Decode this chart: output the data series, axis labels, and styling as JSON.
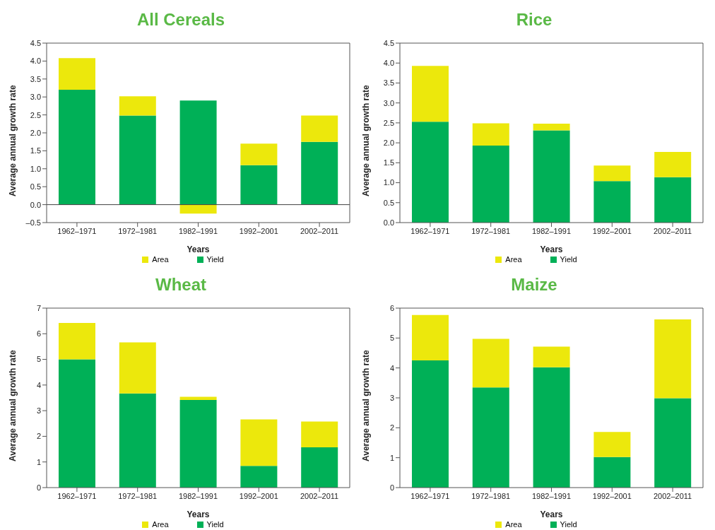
{
  "chart_data": [
    {
      "type": "bar",
      "title": "All Cereals",
      "xlabel": "Years",
      "ylabel": "Average annual growth rate",
      "categories": [
        "1962–1971",
        "1972–1981",
        "1982–1991",
        "1992–2001",
        "2002–2011"
      ],
      "stacked": true,
      "series": [
        {
          "name": "Yield",
          "color": "#00b057",
          "values": [
            3.2,
            2.48,
            2.9,
            1.1,
            1.75
          ]
        },
        {
          "name": "Area",
          "color": "#ece80c",
          "values": [
            0.88,
            0.54,
            -0.25,
            0.6,
            0.73
          ]
        }
      ],
      "ylim": [
        -0.5,
        4.5
      ],
      "yticks": [
        {
          "value": -0.5,
          "label": "–0.5"
        },
        {
          "value": 0,
          "label": "0.0"
        },
        {
          "value": 0.5,
          "label": "0.5"
        },
        {
          "value": 1,
          "label": "1.0"
        },
        {
          "value": 1.5,
          "label": "1.5"
        },
        {
          "value": 2,
          "label": "2.0"
        },
        {
          "value": 2.5,
          "label": "2.5"
        },
        {
          "value": 3,
          "label": "3.0"
        },
        {
          "value": 3.5,
          "label": "3.5"
        },
        {
          "value": 4,
          "label": "4.0"
        },
        {
          "value": 4.5,
          "label": "4.5"
        }
      ],
      "ref_lines": [
        {
          "axis": "y",
          "value": 0,
          "color": "#404040"
        }
      ],
      "grid": false,
      "legend": "bottom"
    },
    {
      "type": "bar",
      "title": "Rice",
      "xlabel": "Years",
      "ylabel": "Average annual growth rate",
      "categories": [
        "1962–1971",
        "1972–1981",
        "1982–1991",
        "1992–2001",
        "2002–2011"
      ],
      "stacked": true,
      "series": [
        {
          "name": "Yield",
          "color": "#00b057",
          "values": [
            2.53,
            1.93,
            2.31,
            1.04,
            1.14
          ]
        },
        {
          "name": "Area",
          "color": "#ece80c",
          "values": [
            1.4,
            0.56,
            0.17,
            0.39,
            0.63
          ]
        }
      ],
      "ylim": [
        0,
        4.5
      ],
      "yticks": [
        {
          "value": 0,
          "label": "0.0"
        },
        {
          "value": 0.5,
          "label": "0.5"
        },
        {
          "value": 1,
          "label": "1.0"
        },
        {
          "value": 1.5,
          "label": "1.5"
        },
        {
          "value": 2,
          "label": "2.0"
        },
        {
          "value": 2.5,
          "label": "2.5"
        },
        {
          "value": 3,
          "label": "3.0"
        },
        {
          "value": 3.5,
          "label": "3.5"
        },
        {
          "value": 4,
          "label": "4.0"
        },
        {
          "value": 4.5,
          "label": "4.5"
        }
      ],
      "grid": false,
      "legend": "bottom"
    },
    {
      "type": "bar",
      "title": "Wheat",
      "xlabel": "Years",
      "ylabel": "Average annual growth rate",
      "categories": [
        "1962–1971",
        "1972–1981",
        "1982–1991",
        "1992–2001",
        "2002–2011"
      ],
      "stacked": true,
      "series": [
        {
          "name": "Yield",
          "color": "#00b057",
          "values": [
            5.0,
            3.67,
            3.42,
            0.85,
            1.57
          ]
        },
        {
          "name": "Area",
          "color": "#ece80c",
          "values": [
            1.42,
            1.99,
            0.12,
            1.81,
            1.01
          ]
        }
      ],
      "ylim": [
        0,
        7
      ],
      "yticks": [
        0,
        1,
        2,
        3,
        4,
        5,
        6,
        7
      ],
      "grid": false,
      "legend": "bottom"
    },
    {
      "type": "bar",
      "title": "Maize",
      "xlabel": "Years",
      "ylabel": "Average annual growth rate",
      "categories": [
        "1962–1971",
        "1972–1981",
        "1982–1991",
        "1992–2001",
        "2002–2011"
      ],
      "stacked": true,
      "series": [
        {
          "name": "Yield",
          "color": "#00b057",
          "values": [
            4.25,
            3.35,
            4.02,
            1.02,
            2.99
          ]
        },
        {
          "name": "Area",
          "color": "#ece80c",
          "values": [
            1.52,
            1.62,
            0.69,
            0.84,
            2.63
          ]
        }
      ],
      "ylim": [
        0,
        6
      ],
      "yticks": [
        0,
        1,
        2,
        3,
        4,
        5,
        6
      ],
      "grid": false,
      "legend": "bottom"
    }
  ]
}
